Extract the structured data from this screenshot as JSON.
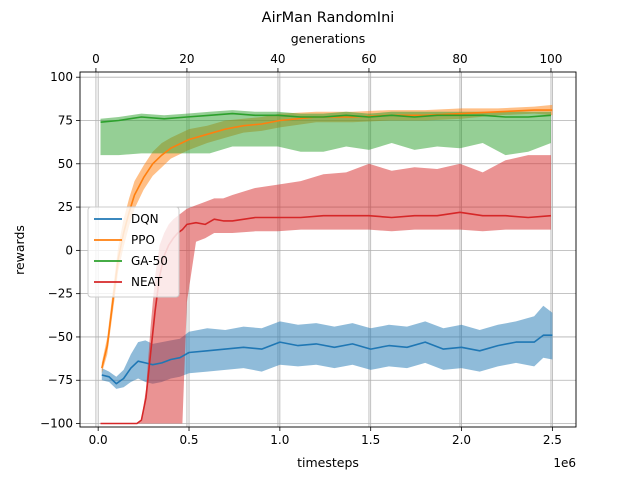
{
  "chart_data": {
    "type": "line",
    "title": "AirMan RandomIni",
    "xlabel": "timesteps",
    "x_offset_label": "1e6",
    "top_xlabel": "generations",
    "ylabel": "rewards",
    "xlim": [
      -0.1,
      2.63
    ],
    "ylim": [
      -102,
      103
    ],
    "top_xlim": [
      -3.5,
      105.5
    ],
    "xticks": [
      0,
      0.5,
      1,
      1.5,
      2,
      2.5
    ],
    "xtick_labels": [
      "0.0",
      "0.5",
      "1.0",
      "1.5",
      "2.0",
      "2.5"
    ],
    "top_xticks": [
      0,
      20,
      40,
      60,
      80,
      100
    ],
    "top_xtick_labels": [
      "0",
      "20",
      "40",
      "60",
      "80",
      "100"
    ],
    "yticks": [
      -100,
      -75,
      -50,
      -25,
      0,
      25,
      50,
      75,
      100
    ],
    "ytick_labels": [
      "−100",
      "−75",
      "−50",
      "−25",
      "0",
      "25",
      "50",
      "75",
      "100"
    ],
    "grid": true,
    "legend_position": "center-left",
    "series": [
      {
        "name": "DQN",
        "color": "#1f77b4",
        "axis": "bottom",
        "x": [
          0.02,
          0.06,
          0.1,
          0.14,
          0.18,
          0.22,
          0.26,
          0.3,
          0.35,
          0.4,
          0.45,
          0.5,
          0.6,
          0.7,
          0.8,
          0.9,
          1.0,
          1.1,
          1.2,
          1.3,
          1.4,
          1.5,
          1.6,
          1.7,
          1.8,
          1.9,
          2.0,
          2.1,
          2.2,
          2.3,
          2.4,
          2.45,
          2.5
        ],
        "y": [
          -72,
          -73,
          -77,
          -74,
          -68,
          -64,
          -65,
          -66,
          -65,
          -63,
          -62,
          -59,
          -58,
          -57,
          -56,
          -57,
          -53,
          -55,
          -54,
          -56,
          -54,
          -57,
          -55,
          -56,
          -53,
          -57,
          -56,
          -58,
          -55,
          -53,
          -53,
          -49,
          -49
        ],
        "upper": [
          -68,
          -70,
          -73,
          -69,
          -60,
          -53,
          -52,
          -54,
          -53,
          -52,
          -51,
          -47,
          -45,
          -46,
          -44,
          -45,
          -41,
          -43,
          -42,
          -44,
          -42,
          -45,
          -43,
          -44,
          -41,
          -45,
          -43,
          -46,
          -43,
          -41,
          -38,
          -32,
          -36
        ],
        "lower": [
          -75,
          -76,
          -80,
          -79,
          -76,
          -74,
          -76,
          -77,
          -76,
          -74,
          -73,
          -71,
          -70,
          -69,
          -68,
          -70,
          -66,
          -67,
          -66,
          -68,
          -66,
          -69,
          -67,
          -68,
          -65,
          -69,
          -68,
          -70,
          -67,
          -65,
          -67,
          -62,
          -63
        ]
      },
      {
        "name": "PPO",
        "color": "#ff7f0e",
        "axis": "bottom",
        "x": [
          0.02,
          0.05,
          0.08,
          0.11,
          0.14,
          0.17,
          0.2,
          0.25,
          0.3,
          0.35,
          0.4,
          0.5,
          0.6,
          0.7,
          0.8,
          0.9,
          1.0,
          1.2,
          1.4,
          1.6,
          1.8,
          2.0,
          2.2,
          2.4,
          2.5
        ],
        "y": [
          -68,
          -55,
          -30,
          -5,
          10,
          22,
          32,
          42,
          50,
          55,
          59,
          64,
          67,
          70,
          72,
          73,
          75,
          77,
          77,
          78,
          78,
          79,
          80,
          81,
          81
        ],
        "upper": [
          -65,
          -50,
          -24,
          2,
          18,
          30,
          40,
          49,
          57,
          62,
          65,
          70,
          72,
          75,
          76,
          77,
          79,
          80,
          80,
          81,
          81,
          82,
          82,
          83,
          84
        ],
        "lower": [
          -71,
          -60,
          -36,
          -12,
          2,
          14,
          24,
          35,
          43,
          48,
          53,
          58,
          62,
          65,
          68,
          69,
          71,
          74,
          74,
          75,
          75,
          76,
          78,
          79,
          78
        ]
      },
      {
        "name": "GA-50",
        "color": "#2ca02c",
        "axis": "top",
        "x": [
          1,
          5,
          10,
          15,
          20,
          25,
          30,
          35,
          40,
          45,
          50,
          55,
          60,
          65,
          70,
          75,
          80,
          85,
          90,
          95,
          100
        ],
        "y": [
          74,
          75,
          77,
          76,
          77,
          78,
          79,
          78,
          78,
          77,
          77,
          78,
          77,
          78,
          77,
          78,
          78,
          78,
          77,
          77,
          78
        ],
        "upper": [
          76,
          77,
          79,
          78,
          79,
          80,
          81,
          80,
          80,
          79,
          79,
          80,
          79,
          80,
          80,
          80,
          80,
          80,
          80,
          80,
          80
        ],
        "lower": [
          55,
          55,
          56,
          56,
          56,
          56,
          60,
          60,
          60,
          57,
          57,
          60,
          58,
          62,
          58,
          60,
          59,
          62,
          55,
          57,
          62
        ]
      },
      {
        "name": "NEAT",
        "color": "#d62728",
        "axis": "top",
        "x": [
          1,
          3,
          5,
          7,
          9,
          10,
          11,
          12,
          13,
          14,
          15,
          16,
          17,
          18,
          19,
          20,
          22,
          24,
          26,
          28,
          30,
          35,
          40,
          45,
          50,
          55,
          60,
          65,
          70,
          75,
          80,
          85,
          90,
          95,
          100
        ],
        "y": [
          -100,
          -100,
          -100,
          -100,
          -100,
          -98,
          -85,
          -60,
          -35,
          -15,
          -3,
          3,
          7,
          10,
          12,
          15,
          16,
          15,
          18,
          17,
          17,
          19,
          19,
          19,
          20,
          20,
          20,
          19,
          20,
          20,
          22,
          20,
          20,
          19,
          20
        ],
        "upper": [
          -100,
          -100,
          -100,
          -100,
          -100,
          -98,
          -80,
          -45,
          -15,
          3,
          10,
          15,
          18,
          20,
          22,
          24,
          26,
          28,
          30,
          30,
          32,
          36,
          38,
          40,
          44,
          45,
          50,
          46,
          48,
          47,
          50,
          45,
          52,
          55,
          55
        ],
        "lower": [
          -100,
          -100,
          -100,
          -100,
          -100,
          -100,
          -100,
          -100,
          -100,
          -100,
          -100,
          -100,
          -100,
          -100,
          -100,
          -30,
          5,
          7,
          10,
          10,
          10,
          11,
          11,
          12,
          12,
          12,
          12,
          11,
          12,
          12,
          12,
          11,
          12,
          12,
          12
        ]
      }
    ]
  }
}
